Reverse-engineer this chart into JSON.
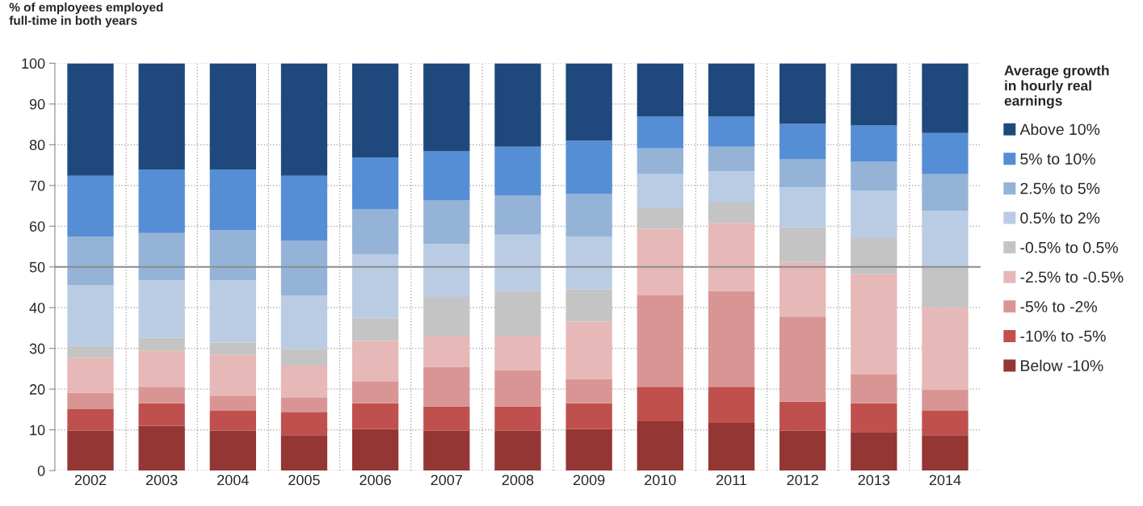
{
  "chart_data": {
    "type": "bar",
    "stacked": true,
    "ylabel": "% of employees employed\nfull-time in both years",
    "legend_title": "Average growth\nin hourly real\nearnings",
    "categories": [
      "2002",
      "2003",
      "2004",
      "2005",
      "2006",
      "2007",
      "2008",
      "2009",
      "2010",
      "2011",
      "2012",
      "2013",
      "2014"
    ],
    "series": [
      {
        "name": "Below -10%",
        "color": "#943634",
        "values": [
          9.8,
          11.0,
          9.8,
          8.7,
          10.2,
          9.8,
          9.8,
          10.2,
          12.1,
          11.7,
          9.8,
          9.5,
          8.7
        ]
      },
      {
        "name": "-10% to -5%",
        "color": "#c0504d",
        "values": [
          5.3,
          5.5,
          4.9,
          5.6,
          6.3,
          5.9,
          5.9,
          6.3,
          8.5,
          8.9,
          7.1,
          7.0,
          6.0
        ]
      },
      {
        "name": "-5% to -2%",
        "color": "#d99594",
        "values": [
          4.0,
          4.1,
          3.7,
          3.7,
          5.3,
          9.8,
          9.0,
          6.0,
          22.4,
          23.5,
          20.9,
          7.1,
          5.2
        ]
      },
      {
        "name": "-2.5% to -0.5%",
        "color": "#e6b8b7",
        "values": [
          8.6,
          8.9,
          10.1,
          7.8,
          10.0,
          7.4,
          8.2,
          14.1,
          16.3,
          16.7,
          13.4,
          24.6,
          20.1
        ]
      },
      {
        "name": "-0.5% to 0.5%",
        "color": "#c4c4c4",
        "values": [
          3.0,
          3.1,
          2.9,
          4.1,
          5.6,
          9.7,
          11.2,
          7.9,
          5.3,
          5.2,
          8.5,
          8.9,
          10.0
        ]
      },
      {
        "name": "0.5% to 2%",
        "color": "#b9cce4",
        "values": [
          14.8,
          14.1,
          15.3,
          13.1,
          15.6,
          13.1,
          13.8,
          13.0,
          8.2,
          7.5,
          9.8,
          11.6,
          13.8
        ]
      },
      {
        "name": "2.5% to 5%",
        "color": "#95b3d7",
        "values": [
          12.0,
          11.6,
          12.3,
          13.4,
          11.2,
          10.7,
          9.7,
          10.4,
          6.3,
          6.0,
          7.0,
          7.1,
          9.0
        ]
      },
      {
        "name": "5% to 10%",
        "color": "#558ed5",
        "values": [
          14.9,
          15.6,
          14.9,
          16.0,
          12.7,
          12.0,
          11.9,
          13.1,
          7.8,
          7.4,
          8.6,
          8.9,
          10.1
        ]
      },
      {
        "name": "Above 10%",
        "color": "#1f497d",
        "values": [
          27.6,
          26.1,
          26.1,
          27.6,
          23.1,
          21.6,
          20.5,
          19.0,
          13.1,
          13.1,
          14.9,
          15.3,
          17.1
        ]
      }
    ],
    "ylim": [
      0,
      100
    ],
    "yticks": [
      0,
      10,
      20,
      30,
      40,
      50,
      60,
      70,
      80,
      90,
      100
    ],
    "ref_lines": [
      {
        "axis": "y",
        "value": 50,
        "color": "#8c8c8c"
      }
    ],
    "grid": true,
    "legend": "right"
  }
}
